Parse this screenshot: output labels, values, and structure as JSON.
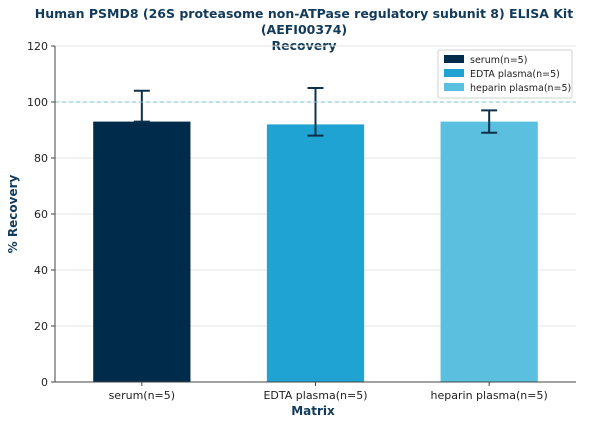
{
  "chart_data": {
    "type": "bar",
    "title": "Human PSMD8 (26S proteasome non-ATPase regulatory subunit 8) ELISA Kit (AEFI00374)",
    "subtitle": "Recovery",
    "xlabel": "Matrix",
    "ylabel": "% Recovery",
    "ylim": [
      0,
      120
    ],
    "yticks": [
      0,
      20,
      40,
      60,
      80,
      100,
      120
    ],
    "reference_line": 100,
    "categories": [
      "serum(n=5)",
      "EDTA plasma(n=5)",
      "heparin plasma(n=5)"
    ],
    "values": [
      93,
      92,
      93
    ],
    "error_low": [
      93,
      88,
      89
    ],
    "error_high": [
      104,
      105,
      97
    ],
    "colors": [
      "#002b4a",
      "#1fa3d3",
      "#5bc0e0"
    ],
    "legend": [
      "serum(n=5)",
      "EDTA plasma(n=5)",
      "heparin plasma(n=5)"
    ],
    "legend_position": "top-right",
    "grid": "y"
  }
}
